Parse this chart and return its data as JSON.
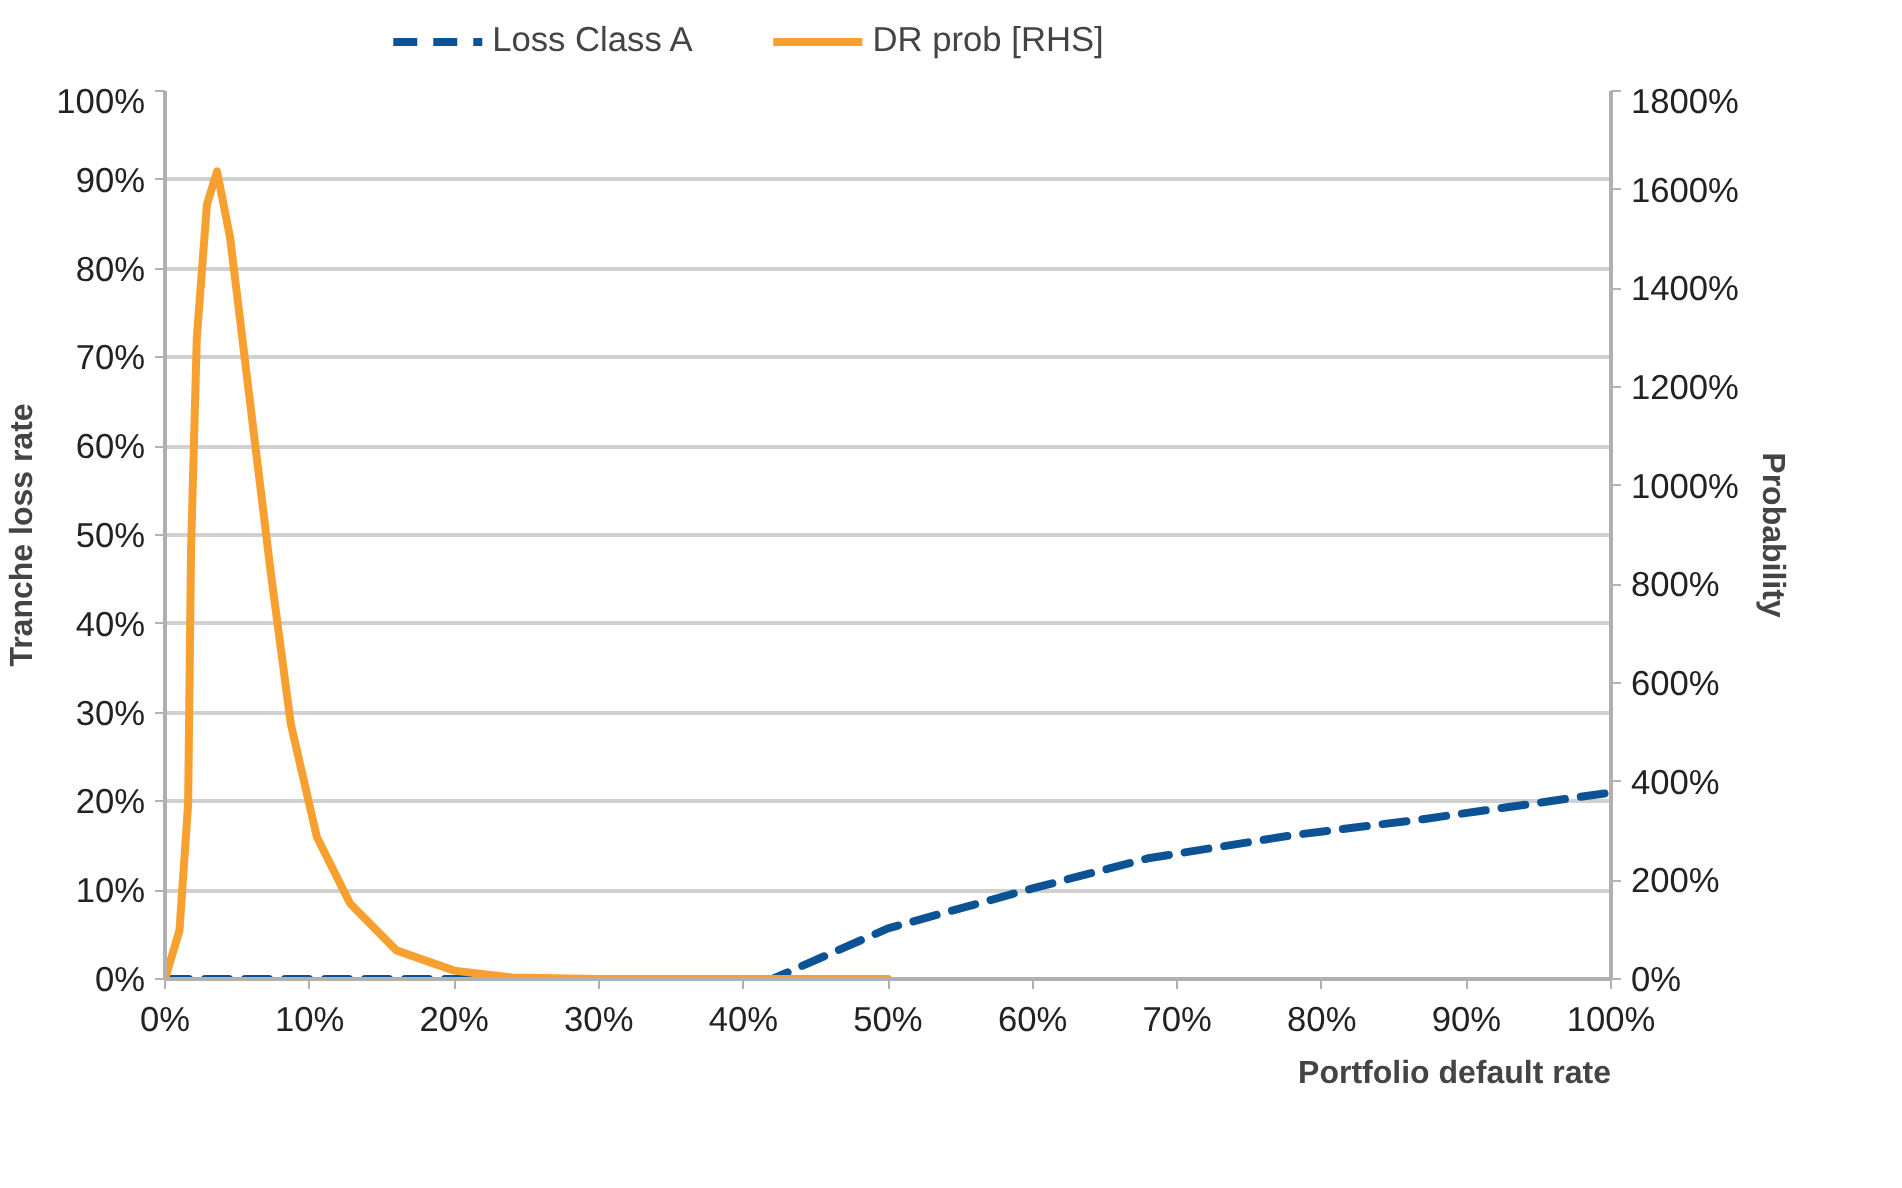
{
  "chart_data": {
    "type": "line",
    "xlabel": "Portfolio default rate",
    "ylabel": "Tranche loss rate",
    "y2label": "Probability",
    "xlim": [
      0,
      100
    ],
    "xticks": [
      {
        "value": 0,
        "label": "0%"
      },
      {
        "value": 10,
        "label": "10%"
      },
      {
        "value": 20,
        "label": "20%"
      },
      {
        "value": 30,
        "label": "30%"
      },
      {
        "value": 40,
        "label": "40%"
      },
      {
        "value": 50,
        "label": "50%"
      },
      {
        "value": 60,
        "label": "60%"
      },
      {
        "value": 70,
        "label": "70%"
      },
      {
        "value": 80,
        "label": "80%"
      },
      {
        "value": 90,
        "label": "90%"
      },
      {
        "value": 100,
        "label": "100%"
      }
    ],
    "ylim": [
      0,
      100
    ],
    "yticks": [
      {
        "value": 0,
        "label": "0%"
      },
      {
        "value": 10,
        "label": "10%"
      },
      {
        "value": 20,
        "label": "20%"
      },
      {
        "value": 30,
        "label": "30%"
      },
      {
        "value": 40,
        "label": "40%"
      },
      {
        "value": 50,
        "label": "50%"
      },
      {
        "value": 60,
        "label": "60%"
      },
      {
        "value": 70,
        "label": "70%"
      },
      {
        "value": 80,
        "label": "80%"
      },
      {
        "value": 90,
        "label": "90%"
      },
      {
        "value": 100,
        "label": "100%"
      }
    ],
    "y2lim": [
      0,
      1800
    ],
    "y2ticks": [
      {
        "value": 0,
        "label": "0%"
      },
      {
        "value": 200,
        "label": "200%"
      },
      {
        "value": 400,
        "label": "400%"
      },
      {
        "value": 600,
        "label": "600%"
      },
      {
        "value": 800,
        "label": "800%"
      },
      {
        "value": 1000,
        "label": "1000%"
      },
      {
        "value": 1200,
        "label": "1200%"
      },
      {
        "value": 1400,
        "label": "1400%"
      },
      {
        "value": 1600,
        "label": "1600%"
      },
      {
        "value": 1800,
        "label": "1800%"
      }
    ],
    "grid": "y",
    "legend": "top",
    "marker": "none",
    "series": [
      {
        "name": "Loss Class A",
        "color": "#0b5394",
        "line_style": "dashed",
        "x": [
          0,
          42,
          50,
          60,
          68,
          78,
          87,
          100
        ],
        "values": [
          0,
          0,
          5.7,
          10.2,
          13.6,
          16.2,
          18,
          21
        ]
      },
      {
        "name": "DR prob [RHS]",
        "color": "#f7a030",
        "line_style": "solid",
        "axis": "y2",
        "x": [
          0,
          1,
          1.6,
          1.8,
          2.2,
          2.9,
          3.6,
          4.5,
          5.9,
          7.3,
          8.7,
          10.5,
          12.8,
          16,
          20,
          24,
          30,
          40,
          50
        ],
        "values": [
          0,
          98,
          355,
          868,
          1300,
          1570,
          1637,
          1503,
          1165,
          827,
          517,
          288,
          153,
          58,
          17,
          3,
          0,
          0,
          0
        ]
      }
    ]
  }
}
